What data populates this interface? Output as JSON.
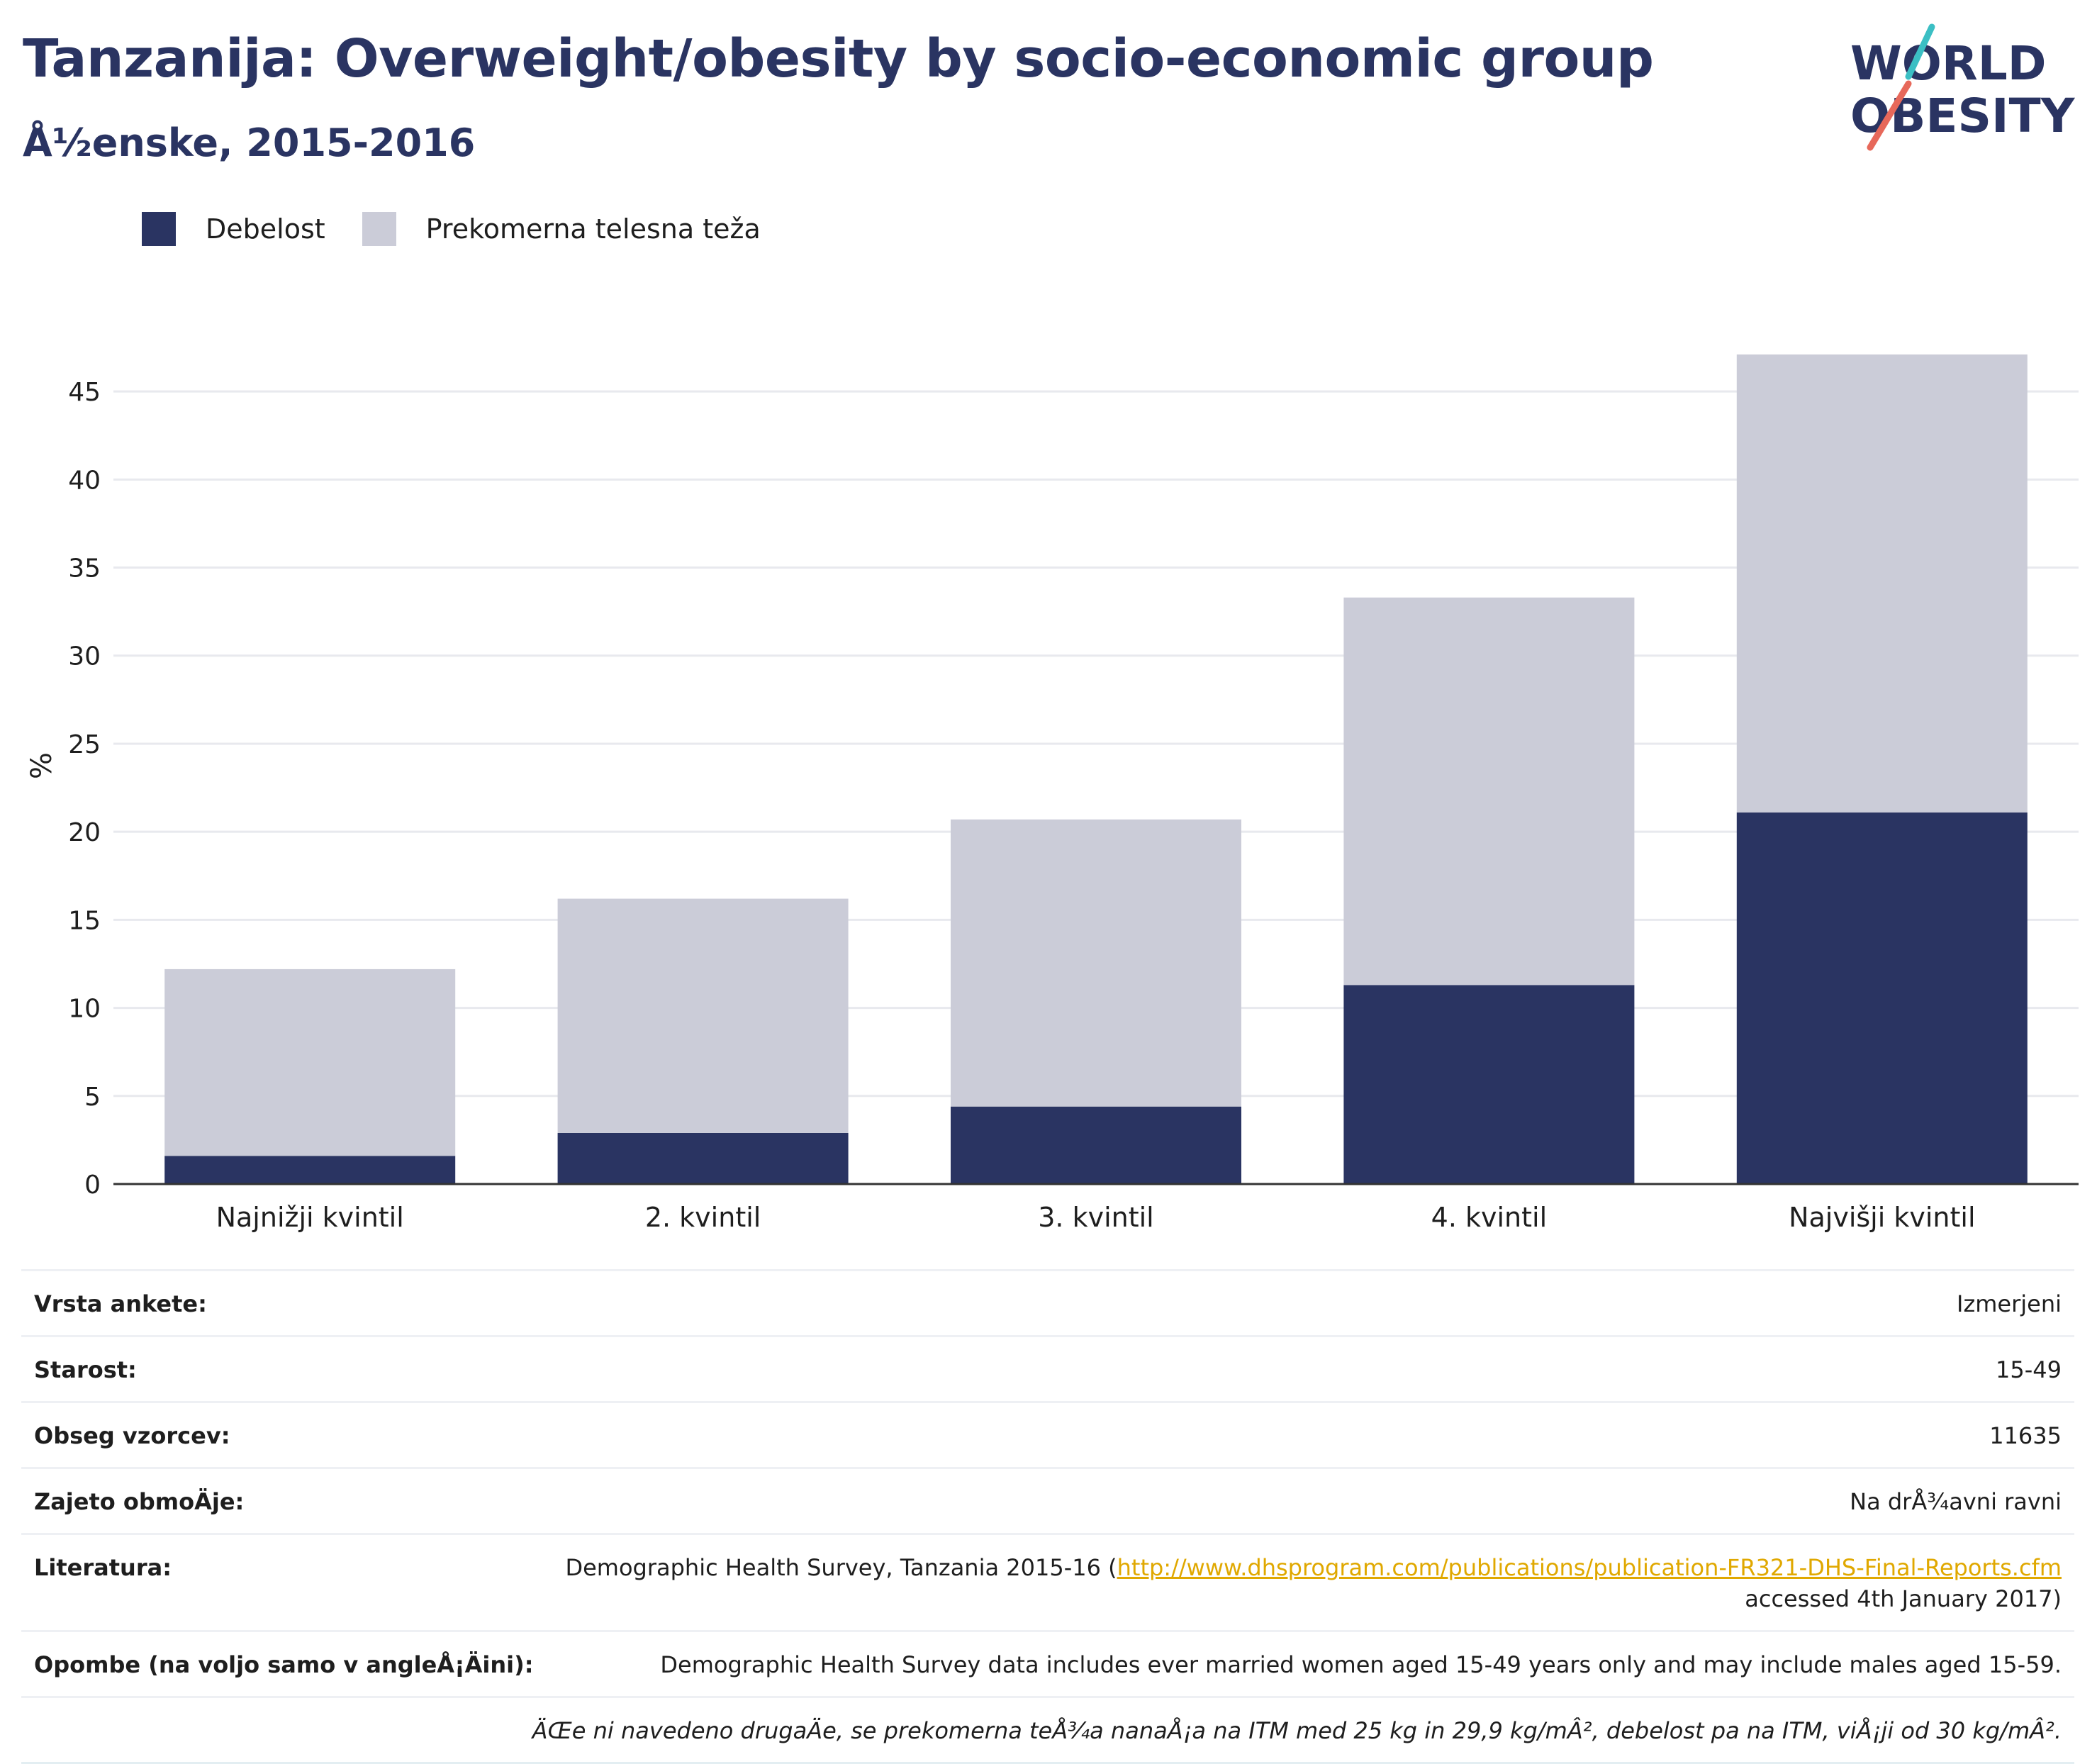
{
  "header": {
    "title": "Tanzanija: Overweight/obesity by socio-economic group",
    "subtitle": "Å½enske, 2015-2016",
    "logo_line1": "WORLD",
    "logo_line2": "OBESITY"
  },
  "legend": {
    "obesity": "Debelost",
    "overweight": "Prekomerna telesna teža"
  },
  "colors": {
    "obesity": "#2a3462",
    "overweight": "#cbccd8",
    "accent_teal": "#3bbfc4",
    "accent_red": "#e7685a"
  },
  "chart_data": {
    "type": "bar",
    "stacked": true,
    "categories": [
      "Najnižji kvintil",
      "2. kvintil",
      "3. kvintil",
      "4. kvintil",
      "Najvišji kvintil"
    ],
    "series": [
      {
        "name": "Debelost",
        "values": [
          1.6,
          2.9,
          4.4,
          11.3,
          21.1
        ]
      },
      {
        "name": "Prekomerna telesna teža",
        "values": [
          10.6,
          13.3,
          16.3,
          22.0,
          26.0
        ]
      }
    ],
    "ylabel": "%",
    "ylim": [
      0,
      47.5
    ],
    "yticks": [
      0,
      5,
      10,
      15,
      20,
      25,
      30,
      35,
      40,
      45
    ],
    "grid": true,
    "legend_position": "top-left"
  },
  "details": {
    "survey_type": {
      "label": "Vrsta ankete:",
      "value": "Izmerjeni"
    },
    "age": {
      "label": "Starost:",
      "value": "15-49"
    },
    "sample_size": {
      "label": "Obseg vzorcev:",
      "value": "11635"
    },
    "coverage": {
      "label": "Zajeto obmoÄje:",
      "value": "Na drÅ¾avni ravni"
    },
    "reference": {
      "label": "Literatura:",
      "text_before": "Demographic Health Survey, Tanzania 2015-16 (",
      "link": "http://www.dhsprogram.com/publications/publication-FR321-DHS-Final-Reports.cfm",
      "text_after": "accessed 4th January 2017)"
    },
    "notes": {
      "label": "Opombe (na voljo samo v angleÅ¡Äini):",
      "value": "Demographic Health Survey data includes ever married women aged 15-49 years only and may include males aged 15-59."
    },
    "definition": "ÄŒe ni navedeno drugaÄe, se prekomerna teÅ¾a nanaÅ¡a na ITM med 25 kg in 29,9 kg/mÂ², debelost pa na ITM, viÅ¡ji od 30 kg/mÂ²."
  }
}
